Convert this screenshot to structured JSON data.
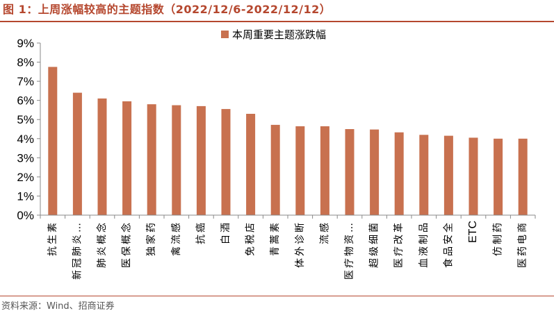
{
  "title": "图 1：上周涨幅较高的主题指数（2022/12/6-2022/12/12）",
  "source": "资料来源：Wind、招商证券",
  "colors": {
    "accent": "#B5472E",
    "bar": "#C8714F"
  },
  "chart_data": {
    "type": "bar",
    "legend": "本周重要主题涨跌幅",
    "legend_position": "top",
    "categories": [
      "抗生素",
      "新冠肺炎…",
      "肺炎概念",
      "医保概念",
      "独家药",
      "禽流感",
      "抗癌",
      "白酒",
      "免税店",
      "青蒿素",
      "体外诊断",
      "流感",
      "医疗物资…",
      "超级细菌",
      "医疗改革",
      "血液制品",
      "食品安全",
      "ETC",
      "仿制药",
      "医药电商"
    ],
    "series": [
      {
        "name": "本周重要主题涨跌幅",
        "values": [
          7.75,
          6.4,
          6.1,
          5.95,
          5.8,
          5.75,
          5.7,
          5.55,
          5.3,
          4.72,
          4.65,
          4.65,
          4.5,
          4.48,
          4.33,
          4.2,
          4.15,
          4.05,
          4.0,
          4.0
        ]
      }
    ],
    "ylim": [
      0,
      9
    ],
    "yticks": [
      "0%",
      "1%",
      "2%",
      "3%",
      "4%",
      "5%",
      "6%",
      "7%",
      "8%",
      "9%"
    ],
    "grid": false
  }
}
